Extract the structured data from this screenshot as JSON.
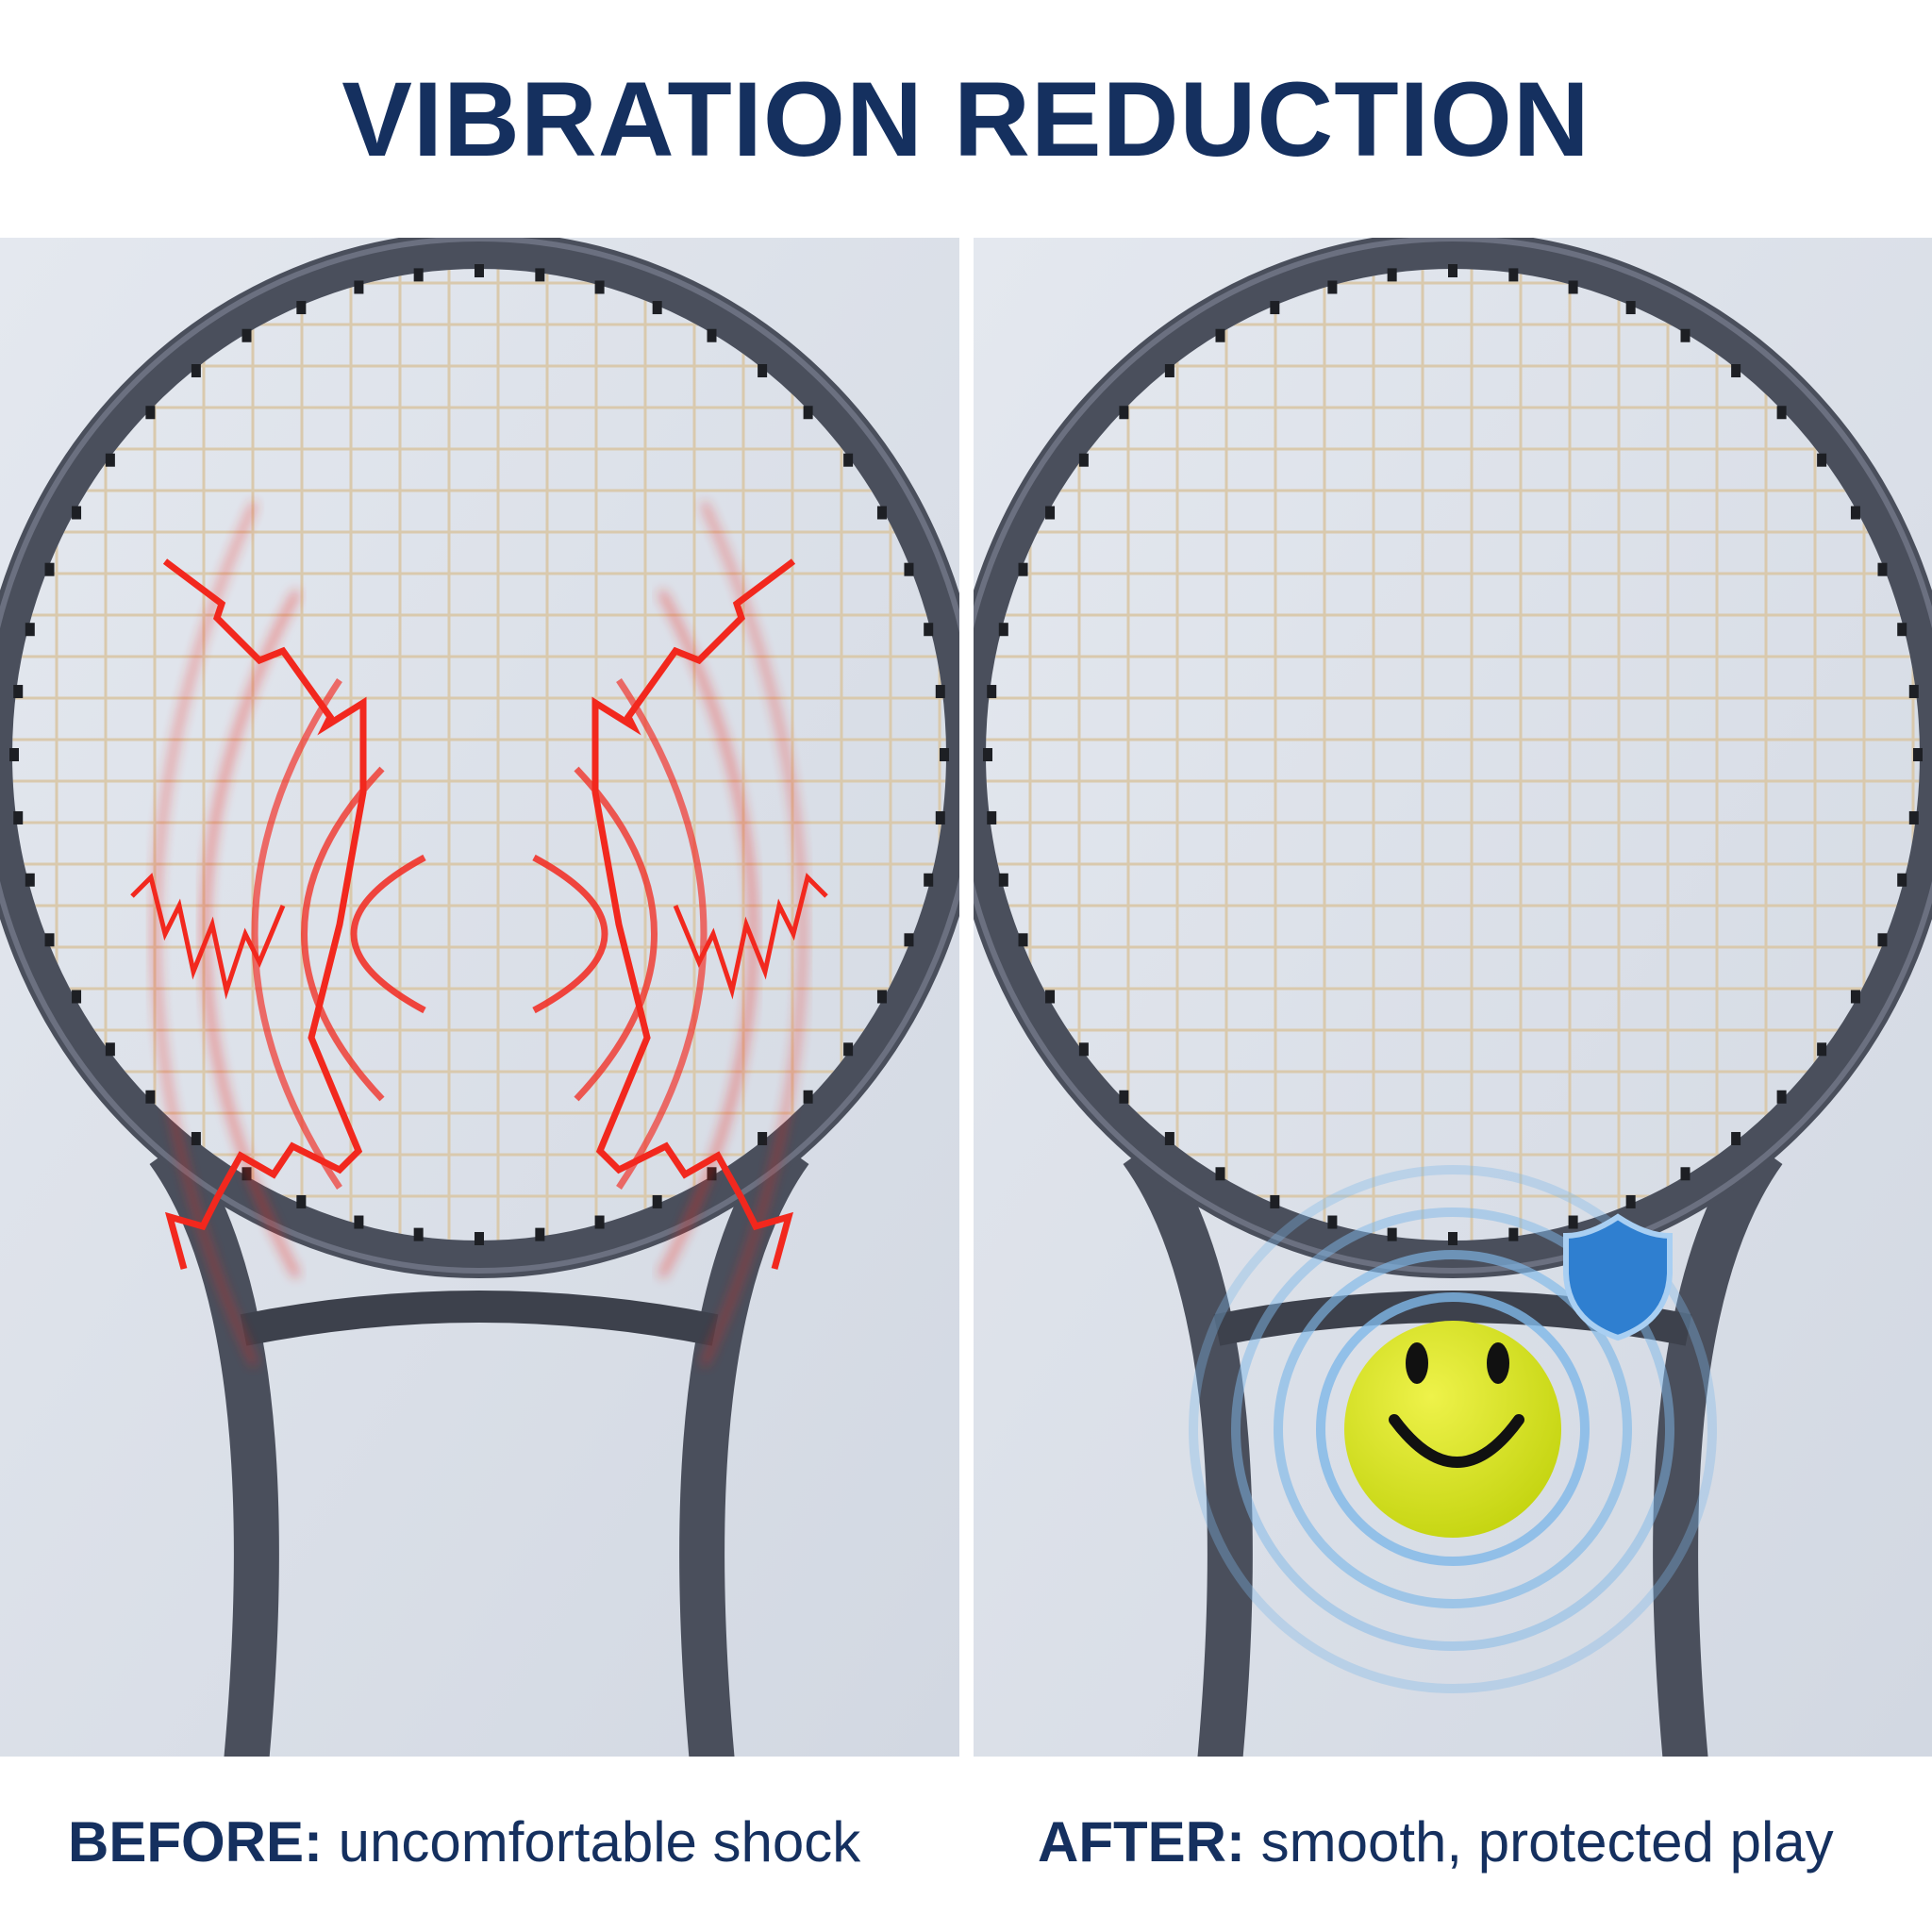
{
  "header": {
    "title": "VIBRATION REDUCTION"
  },
  "panels": [
    {
      "label": "BEFORE:",
      "text": "uncomfortable shock"
    },
    {
      "label": "AFTER:",
      "text": "smooth, protected play"
    }
  ]
}
